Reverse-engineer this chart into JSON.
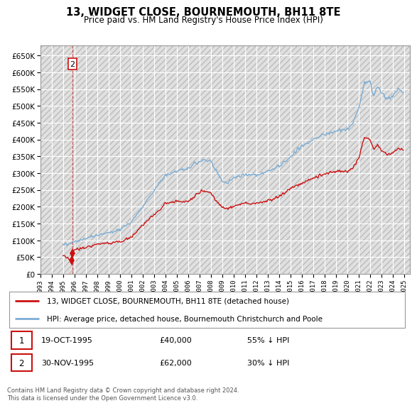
{
  "title": "13, WIDGET CLOSE, BOURNEMOUTH, BH11 8TE",
  "subtitle": "Price paid vs. HM Land Registry's House Price Index (HPI)",
  "legend_line1": "13, WIDGET CLOSE, BOURNEMOUTH, BH11 8TE (detached house)",
  "legend_line2": "HPI: Average price, detached house, Bournemouth Christchurch and Poole",
  "transaction1": {
    "num": "1",
    "date": "19-OCT-1995",
    "price": "£40,000",
    "note": "55% ↓ HPI"
  },
  "transaction2": {
    "num": "2",
    "date": "30-NOV-1995",
    "price": "£62,000",
    "note": "30% ↓ HPI"
  },
  "footnote": "Contains HM Land Registry data © Crown copyright and database right 2024.\nThis data is licensed under the Open Government Licence v3.0.",
  "hpi_color": "#7cadd4",
  "price_color": "#cc1111",
  "marker_color": "#cc1111",
  "ylim": [
    0,
    680000
  ],
  "yticks": [
    0,
    50000,
    100000,
    150000,
    200000,
    250000,
    300000,
    350000,
    400000,
    450000,
    500000,
    550000,
    600000,
    650000
  ],
  "xlim_start": 1993.0,
  "xlim_end": 2025.5,
  "xticks": [
    1993,
    1994,
    1995,
    1996,
    1997,
    1998,
    1999,
    2000,
    2001,
    2002,
    2003,
    2004,
    2005,
    2006,
    2007,
    2008,
    2009,
    2010,
    2011,
    2012,
    2013,
    2014,
    2015,
    2016,
    2017,
    2018,
    2019,
    2020,
    2021,
    2022,
    2023,
    2024,
    2025
  ],
  "sale1_year": 1995.75,
  "sale1_price": 40000,
  "sale2_year": 1995.833,
  "sale2_price": 62000
}
